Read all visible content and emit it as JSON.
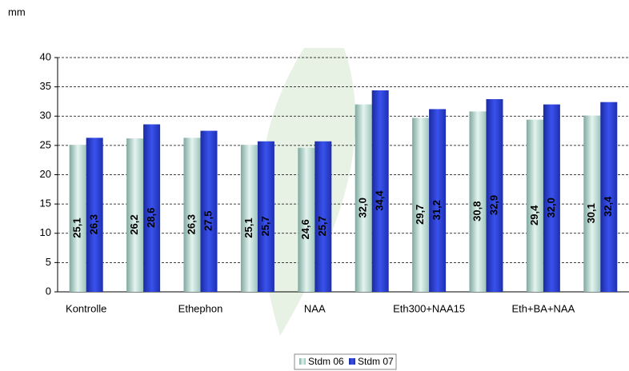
{
  "chart_data": {
    "type": "bar",
    "y_label": "mm",
    "categories": [
      "Kontrolle",
      null,
      "Ethephon",
      null,
      "NAA",
      null,
      "Eth300+NAA15",
      null,
      "Eth+BA+NAA",
      null
    ],
    "series": [
      {
        "name": "Stdm 06",
        "color": "#c6e2da",
        "values": [
          25.1,
          26.2,
          26.3,
          25.1,
          24.6,
          32.0,
          29.7,
          30.8,
          29.4,
          30.1
        ],
        "value_labels": [
          "25,1",
          "26,2",
          "26,3",
          "25,1",
          "24,6",
          "32,0",
          "29,7",
          "30,8",
          "29,4",
          "30,1"
        ]
      },
      {
        "name": "Stdm 07",
        "color": "#2b3fd2",
        "values": [
          26.3,
          28.6,
          27.5,
          25.7,
          25.7,
          34.4,
          31.2,
          32.9,
          32.0,
          32.4
        ],
        "value_labels": [
          "26,3",
          "28,6",
          "27,5",
          "25,7",
          "25,7",
          "34,4",
          "31,2",
          "32,9",
          "32,0",
          "32,4"
        ]
      }
    ],
    "ylim": [
      0,
      40
    ],
    "yticks": [
      0,
      5,
      10,
      15,
      20,
      25,
      30,
      35,
      40
    ],
    "grid": true,
    "legend": "bottom"
  }
}
